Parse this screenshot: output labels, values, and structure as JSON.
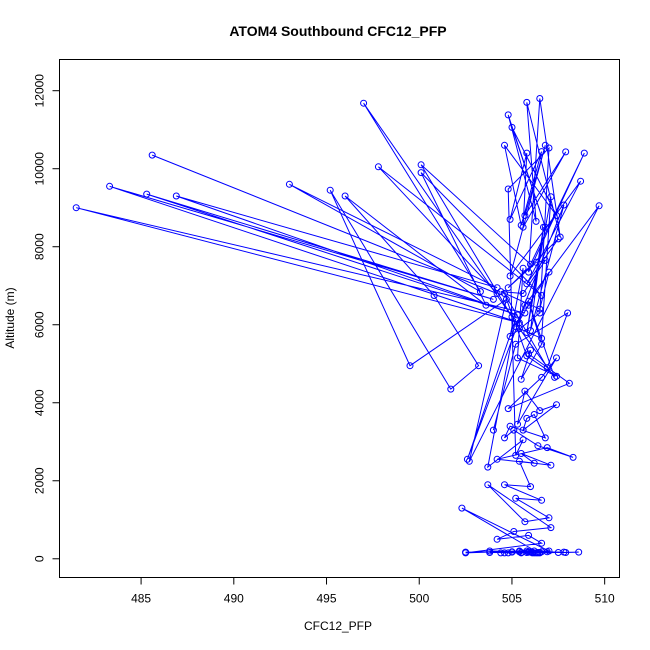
{
  "chart_data": {
    "type": "scatter",
    "title": "ATOM4 Southbound CFC12_PFP",
    "xlabel": "CFC12_PFP",
    "ylabel": "Altitude (m)",
    "xlim": [
      480.6,
      510.8
    ],
    "ylim": [
      -480,
      12800
    ],
    "xticks": [
      485,
      490,
      495,
      500,
      505,
      510
    ],
    "yticks": [
      0,
      2000,
      4000,
      6000,
      8000,
      10000,
      12000
    ],
    "xtick_labels": [
      "485",
      "490",
      "495",
      "500",
      "505",
      "510"
    ],
    "ytick_labels": [
      "0",
      "2000",
      "4000",
      "6000",
      "8000",
      "10000",
      "12000"
    ],
    "color": "#0000ff",
    "marker": "open-circle",
    "connected": true,
    "series": [
      {
        "x": [
          505.7,
          481.5,
          505.4,
          483.3,
          504.0,
          485.3,
          505.3,
          486.9,
          504.2,
          493.0,
          503.3,
          497.0,
          505.0,
          500.1,
          506.0,
          508.9,
          505.9,
          506.5,
          507.6,
          505.8,
          506.3,
          504.8,
          506.8,
          505.0,
          507.4,
          504.6,
          505.5,
          506.6,
          504.9,
          505.8,
          505.6,
          507.9,
          505.7,
          506.8,
          504.9,
          508.7,
          505.8,
          507.5,
          504.8,
          506.3,
          506.8,
          505.6,
          504.4,
          506.5,
          507.0,
          505.9,
          505.2,
          507.8,
          506.0,
          506.7,
          505.8,
          507.1,
          506.6,
          505.4,
          507.3,
          505.9,
          506.6,
          505.5,
          506.0,
          505.9,
          508.1,
          504.8,
          506.6,
          507.4,
          505.3,
          505.7,
          506.5,
          507.4,
          505.6,
          505.8,
          506.2,
          506.8,
          504.9,
          504.6,
          505.1,
          506.4,
          508.3,
          506.9,
          504.2,
          506.2,
          505.5,
          507.1,
          505.4,
          506.0,
          504.6,
          506.6,
          505.2,
          507.0,
          505.7,
          503.7,
          507.1,
          505.1,
          504.2,
          505.9,
          506.6,
          502.5,
          505.4,
          504.8,
          506.6,
          505.9,
          507.0,
          502.3,
          506.4,
          505.9,
          505.0,
          506.1,
          504.6,
          505.5,
          505.8,
          502.5,
          506.2,
          504.4,
          505.4,
          506.5,
          505.0,
          503.8,
          506.2,
          505.8,
          506.9,
          505.5,
          503.8,
          507.5,
          506.1,
          506.4,
          506.0,
          507.8,
          505.9,
          507.9,
          508.6,
          506.3,
          506.5
        ],
        "y": [
          6300,
          9000,
          6050,
          9550,
          6650,
          9350,
          6250,
          9300,
          6950,
          9600,
          6850,
          11680,
          6200,
          10100,
          7550,
          10400,
          7350,
          11800,
          8250,
          11700,
          8650,
          11380,
          8500,
          11060,
          8800,
          10600,
          8550,
          10440,
          8700,
          10400,
          8500,
          10430,
          8800,
          10600,
          7250,
          9680,
          7050,
          8200,
          6950,
          7600,
          7650,
          6800,
          6850,
          6400,
          7350,
          6500,
          5950,
          9070,
          5850,
          8500,
          5800,
          9280,
          5650,
          5900,
          4650,
          6600,
          5500,
          4600,
          5350,
          5250,
          4500,
          3850,
          4650,
          5150,
          3450,
          4300,
          3800,
          3950,
          3300,
          3600,
          3700,
          3100,
          3400,
          3100,
          3300,
          2900,
          2600,
          2850,
          2550,
          2450,
          2700,
          2400,
          2500,
          1850,
          1900,
          1500,
          1550,
          1050,
          950,
          1900,
          800,
          700,
          500,
          600,
          400,
          150,
          200,
          150,
          180,
          170,
          200,
          1300,
          160,
          170,
          180,
          150,
          150,
          160,
          200,
          170,
          200,
          150,
          180,
          150,
          170,
          160,
          150,
          160,
          180,
          150,
          200,
          160,
          170,
          150,
          180,
          170,
          180,
          160,
          170,
          150,
          160
        ]
      },
      {
        "x": [
          485.6,
          504.2,
          497.8,
          506.6,
          500.1,
          503.6,
          496.0,
          500.8,
          503.2,
          501.7,
          495.2,
          499.5,
          504.7,
          502.7,
          509.7,
          505.7,
          502.6,
          505.2,
          503.7,
          505.6,
          505.2,
          504.8,
          507.0,
          506.5,
          504.9,
          505.6,
          505.3,
          507.4,
          505.8,
          504.6,
          506.9,
          508.0,
          505.2,
          504.0
        ],
        "y": [
          10350,
          6800,
          10050,
          6750,
          9900,
          6500,
          9300,
          6750,
          4950,
          4350,
          9450,
          4950,
          6650,
          2500,
          9050,
          6500,
          2550,
          6150,
          2350,
          3050,
          2650,
          9480,
          10530,
          6300,
          5700,
          7450,
          5150,
          4680,
          5200,
          6800,
          4900,
          6300,
          5500,
          3300
        ]
      }
    ]
  }
}
